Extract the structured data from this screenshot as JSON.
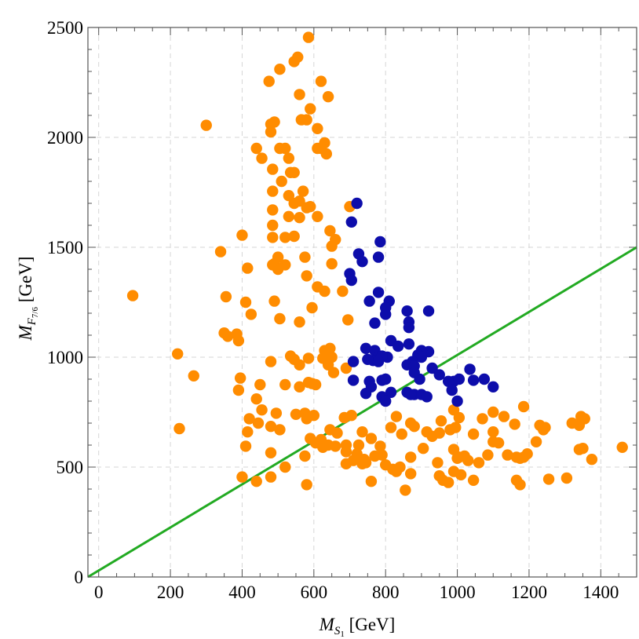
{
  "chart_data": {
    "type": "scatter",
    "xlabel": "M_S1 [GeV]",
    "ylabel": "M_F7/6 [GeV]",
    "xlim": [
      -30,
      1500
    ],
    "ylim": [
      0,
      2500
    ],
    "x_ticks": [
      0,
      200,
      400,
      600,
      800,
      1000,
      1200,
      1400
    ],
    "y_ticks": [
      0,
      500,
      1000,
      1500,
      2000,
      2500
    ],
    "grid": true,
    "colors": {
      "orange": "#ff8c00",
      "blue": "#0d0dab",
      "line": "#22aa22"
    },
    "line": {
      "x": [
        -30,
        1500
      ],
      "y": [
        0,
        1500
      ]
    },
    "series": [
      {
        "color": "#ff8c00",
        "points": [
          [
            585,
            2455
          ],
          [
            555,
            2365
          ],
          [
            545,
            2345
          ],
          [
            475,
            2255
          ],
          [
            505,
            2310
          ],
          [
            620,
            2255
          ],
          [
            560,
            2195
          ],
          [
            640,
            2185
          ],
          [
            590,
            2130
          ],
          [
            565,
            2080
          ],
          [
            580,
            2080
          ],
          [
            490,
            2070
          ],
          [
            480,
            2060
          ],
          [
            300,
            2055
          ],
          [
            480,
            2025
          ],
          [
            610,
            2040
          ],
          [
            630,
            1975
          ],
          [
            620,
            1950
          ],
          [
            440,
            1950
          ],
          [
            520,
            1950
          ],
          [
            610,
            1950
          ],
          [
            505,
            1950
          ],
          [
            635,
            1925
          ],
          [
            455,
            1905
          ],
          [
            530,
            1905
          ],
          [
            485,
            1855
          ],
          [
            545,
            1840
          ],
          [
            535,
            1840
          ],
          [
            510,
            1800
          ],
          [
            570,
            1755
          ],
          [
            485,
            1755
          ],
          [
            530,
            1735
          ],
          [
            560,
            1710
          ],
          [
            545,
            1700
          ],
          [
            580,
            1680
          ],
          [
            590,
            1685
          ],
          [
            700,
            1685
          ],
          [
            485,
            1670
          ],
          [
            530,
            1640
          ],
          [
            610,
            1640
          ],
          [
            560,
            1635
          ],
          [
            645,
            1575
          ],
          [
            485,
            1600
          ],
          [
            545,
            1550
          ],
          [
            485,
            1545
          ],
          [
            520,
            1545
          ],
          [
            400,
            1555
          ],
          [
            660,
            1535
          ],
          [
            650,
            1505
          ],
          [
            340,
            1480
          ],
          [
            575,
            1455
          ],
          [
            500,
            1455
          ],
          [
            490,
            1425
          ],
          [
            485,
            1420
          ],
          [
            520,
            1420
          ],
          [
            650,
            1425
          ],
          [
            500,
            1400
          ],
          [
            415,
            1405
          ],
          [
            580,
            1370
          ],
          [
            610,
            1320
          ],
          [
            630,
            1300
          ],
          [
            680,
            1300
          ],
          [
            95,
            1280
          ],
          [
            355,
            1275
          ],
          [
            490,
            1255
          ],
          [
            410,
            1250
          ],
          [
            425,
            1195
          ],
          [
            595,
            1225
          ],
          [
            505,
            1175
          ],
          [
            560,
            1160
          ],
          [
            695,
            1170
          ],
          [
            350,
            1110
          ],
          [
            360,
            1095
          ],
          [
            385,
            1105
          ],
          [
            390,
            1075
          ],
          [
            645,
            1040
          ],
          [
            630,
            1030
          ],
          [
            480,
            980
          ],
          [
            535,
            1005
          ],
          [
            650,
            1000
          ],
          [
            625,
            995
          ],
          [
            585,
            995
          ],
          [
            545,
            990
          ],
          [
            220,
            1015
          ],
          [
            560,
            965
          ],
          [
            640,
            965
          ],
          [
            690,
            950
          ],
          [
            655,
            930
          ],
          [
            395,
            905
          ],
          [
            265,
            915
          ],
          [
            585,
            885
          ],
          [
            595,
            880
          ],
          [
            605,
            875
          ],
          [
            520,
            875
          ],
          [
            560,
            865
          ],
          [
            450,
            875
          ],
          [
            390,
            850
          ],
          [
            440,
            810
          ],
          [
            455,
            760
          ],
          [
            495,
            745
          ],
          [
            575,
            745
          ],
          [
            550,
            740
          ],
          [
            600,
            735
          ],
          [
            580,
            720
          ],
          [
            685,
            725
          ],
          [
            420,
            720
          ],
          [
            445,
            700
          ],
          [
            480,
            685
          ],
          [
            705,
            735
          ],
          [
            830,
            730
          ],
          [
            1100,
            750
          ],
          [
            1005,
            725
          ],
          [
            1070,
            720
          ],
          [
            1230,
            690
          ],
          [
            1345,
            730
          ],
          [
            1185,
            775
          ],
          [
            1320,
            700
          ],
          [
            1340,
            690
          ],
          [
            1355,
            720
          ],
          [
            225,
            675
          ],
          [
            415,
            660
          ],
          [
            505,
            670
          ],
          [
            590,
            630
          ],
          [
            620,
            625
          ],
          [
            645,
            670
          ],
          [
            665,
            655
          ],
          [
            605,
            610
          ],
          [
            640,
            600
          ],
          [
            660,
            595
          ],
          [
            690,
            600
          ],
          [
            725,
            600
          ],
          [
            735,
            660
          ],
          [
            760,
            630
          ],
          [
            785,
            595
          ],
          [
            815,
            680
          ],
          [
            845,
            650
          ],
          [
            880,
            685
          ],
          [
            870,
            700
          ],
          [
            915,
            660
          ],
          [
            930,
            640
          ],
          [
            950,
            655
          ],
          [
            980,
            670
          ],
          [
            955,
            710
          ],
          [
            995,
            680
          ],
          [
            1045,
            650
          ],
          [
            1100,
            660
          ],
          [
            1130,
            730
          ],
          [
            1160,
            695
          ],
          [
            1240,
            670
          ],
          [
            1245,
            680
          ],
          [
            410,
            595
          ],
          [
            480,
            565
          ],
          [
            575,
            550
          ],
          [
            625,
            590
          ],
          [
            690,
            570
          ],
          [
            720,
            560
          ],
          [
            740,
            535
          ],
          [
            790,
            555
          ],
          [
            710,
            530
          ],
          [
            745,
            520
          ],
          [
            770,
            550
          ],
          [
            800,
            510
          ],
          [
            820,
            490
          ],
          [
            840,
            500
          ],
          [
            870,
            545
          ],
          [
            905,
            585
          ],
          [
            945,
            520
          ],
          [
            990,
            580
          ],
          [
            1005,
            545
          ],
          [
            1020,
            550
          ],
          [
            1060,
            520
          ],
          [
            1085,
            555
          ],
          [
            1100,
            615
          ],
          [
            1115,
            610
          ],
          [
            1140,
            555
          ],
          [
            1165,
            545
          ],
          [
            1175,
            540
          ],
          [
            1185,
            545
          ],
          [
            1195,
            560
          ],
          [
            1220,
            615
          ],
          [
            1340,
            580
          ],
          [
            1350,
            585
          ],
          [
            1375,
            535
          ],
          [
            1460,
            590
          ],
          [
            1000,
            540
          ],
          [
            1030,
            530
          ],
          [
            960,
            440
          ],
          [
            990,
            480
          ],
          [
            1045,
            440
          ],
          [
            1010,
            465
          ],
          [
            975,
            430
          ],
          [
            1165,
            440
          ],
          [
            1175,
            420
          ],
          [
            1255,
            445
          ],
          [
            1305,
            450
          ],
          [
            855,
            395
          ],
          [
            870,
            470
          ],
          [
            830,
            480
          ],
          [
            760,
            435
          ],
          [
            735,
            515
          ],
          [
            690,
            515
          ],
          [
            440,
            435
          ],
          [
            480,
            455
          ],
          [
            520,
            500
          ],
          [
            400,
            455
          ],
          [
            580,
            420
          ],
          [
            950,
            460
          ],
          [
            990,
            760
          ],
          [
            1005,
            545
          ]
        ]
      },
      {
        "color": "#0d0dab",
        "points": [
          [
            720,
            1700
          ],
          [
            705,
            1615
          ],
          [
            785,
            1525
          ],
          [
            725,
            1470
          ],
          [
            780,
            1455
          ],
          [
            735,
            1435
          ],
          [
            700,
            1380
          ],
          [
            705,
            1350
          ],
          [
            780,
            1295
          ],
          [
            810,
            1255
          ],
          [
            755,
            1255
          ],
          [
            800,
            1225
          ],
          [
            860,
            1210
          ],
          [
            920,
            1210
          ],
          [
            800,
            1195
          ],
          [
            865,
            1160
          ],
          [
            770,
            1155
          ],
          [
            865,
            1135
          ],
          [
            815,
            1075
          ],
          [
            835,
            1050
          ],
          [
            745,
            1040
          ],
          [
            865,
            1060
          ],
          [
            770,
            1030
          ],
          [
            920,
            1025
          ],
          [
            900,
            1030
          ],
          [
            890,
            1010
          ],
          [
            780,
            1000
          ],
          [
            805,
            1000
          ],
          [
            765,
            985
          ],
          [
            790,
            1005
          ],
          [
            900,
            1000
          ],
          [
            875,
            980
          ],
          [
            780,
            980
          ],
          [
            710,
            980
          ],
          [
            860,
            965
          ],
          [
            750,
            990
          ],
          [
            880,
            960
          ],
          [
            755,
            890
          ],
          [
            790,
            895
          ],
          [
            930,
            950
          ],
          [
            975,
            890
          ],
          [
            990,
            890
          ],
          [
            1005,
            900
          ],
          [
            1035,
            945
          ],
          [
            1045,
            895
          ],
          [
            1075,
            900
          ],
          [
            1100,
            865
          ],
          [
            950,
            920
          ],
          [
            895,
            900
          ],
          [
            880,
            930
          ],
          [
            800,
            900
          ],
          [
            710,
            895
          ],
          [
            760,
            865
          ],
          [
            815,
            840
          ],
          [
            790,
            820
          ],
          [
            800,
            800
          ],
          [
            860,
            840
          ],
          [
            880,
            830
          ],
          [
            900,
            830
          ],
          [
            915,
            820
          ],
          [
            745,
            835
          ],
          [
            1000,
            800
          ],
          [
            985,
            850
          ],
          [
            870,
            830
          ]
        ]
      }
    ]
  }
}
